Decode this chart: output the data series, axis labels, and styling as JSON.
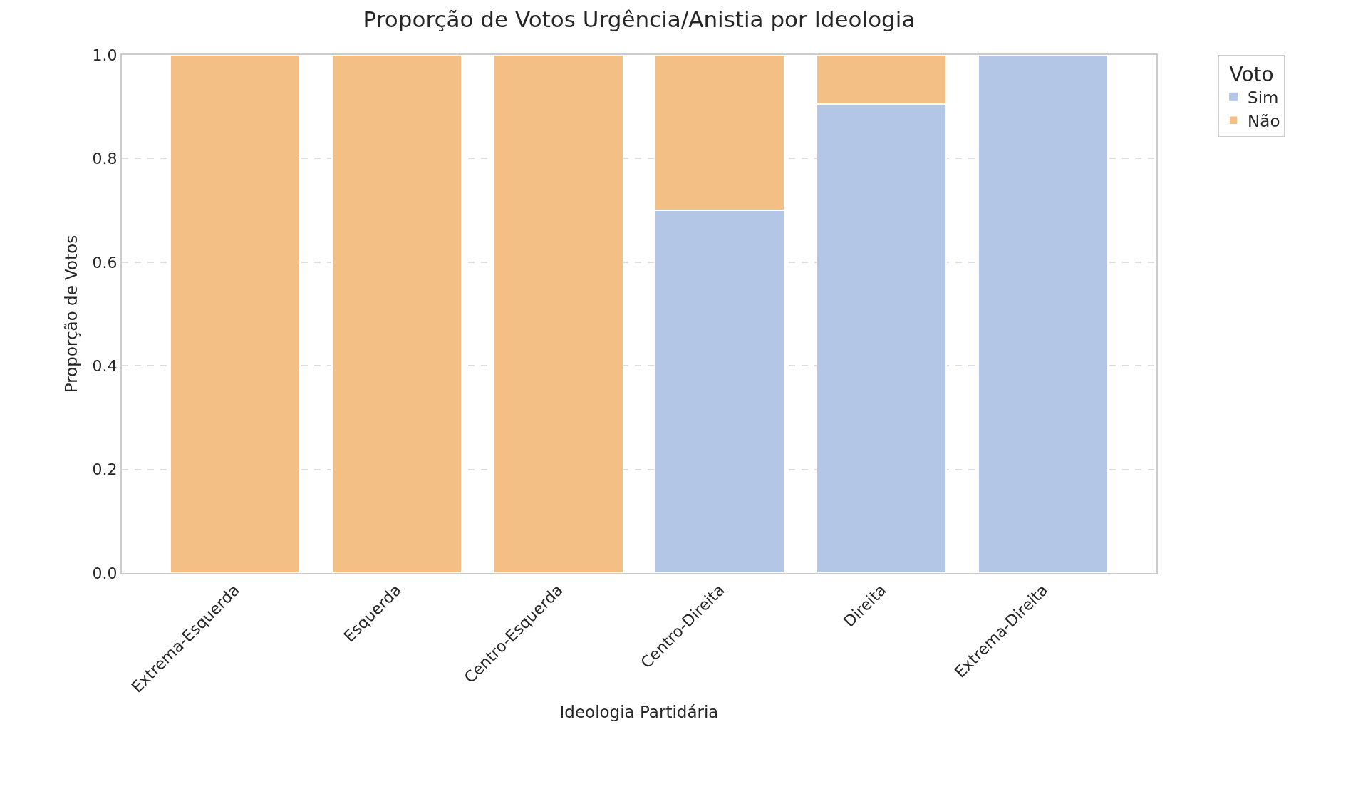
{
  "chart_data": {
    "type": "bar",
    "title": "Proporção de Votos Urgência/Anistia por Ideologia",
    "xlabel": "Ideologia Partidária",
    "ylabel": "Proporção de Votos",
    "legend_title": "Voto",
    "categories": [
      "Extrema-Esquerda",
      "Esquerda",
      "Centro-Esquerda",
      "Centro-Direita",
      "Direita",
      "Extrema-Direita"
    ],
    "stacked": true,
    "series": [
      {
        "name": "Sim",
        "color": "#b3c6e6",
        "values": [
          0,
          0,
          0,
          0.7,
          0.905,
          1.0
        ]
      },
      {
        "name": "Não",
        "color": "#f4bf85",
        "values": [
          1.0,
          1.0,
          1.0,
          0.3,
          0.095,
          0
        ]
      }
    ],
    "ylim": [
      0,
      1.0
    ],
    "yticks": [
      {
        "value": 0,
        "label": "0.0"
      },
      0.2,
      0.4,
      0.6,
      0.8,
      {
        "value": 1,
        "label": "1.0"
      }
    ],
    "grid": "y",
    "legend": "top right"
  }
}
